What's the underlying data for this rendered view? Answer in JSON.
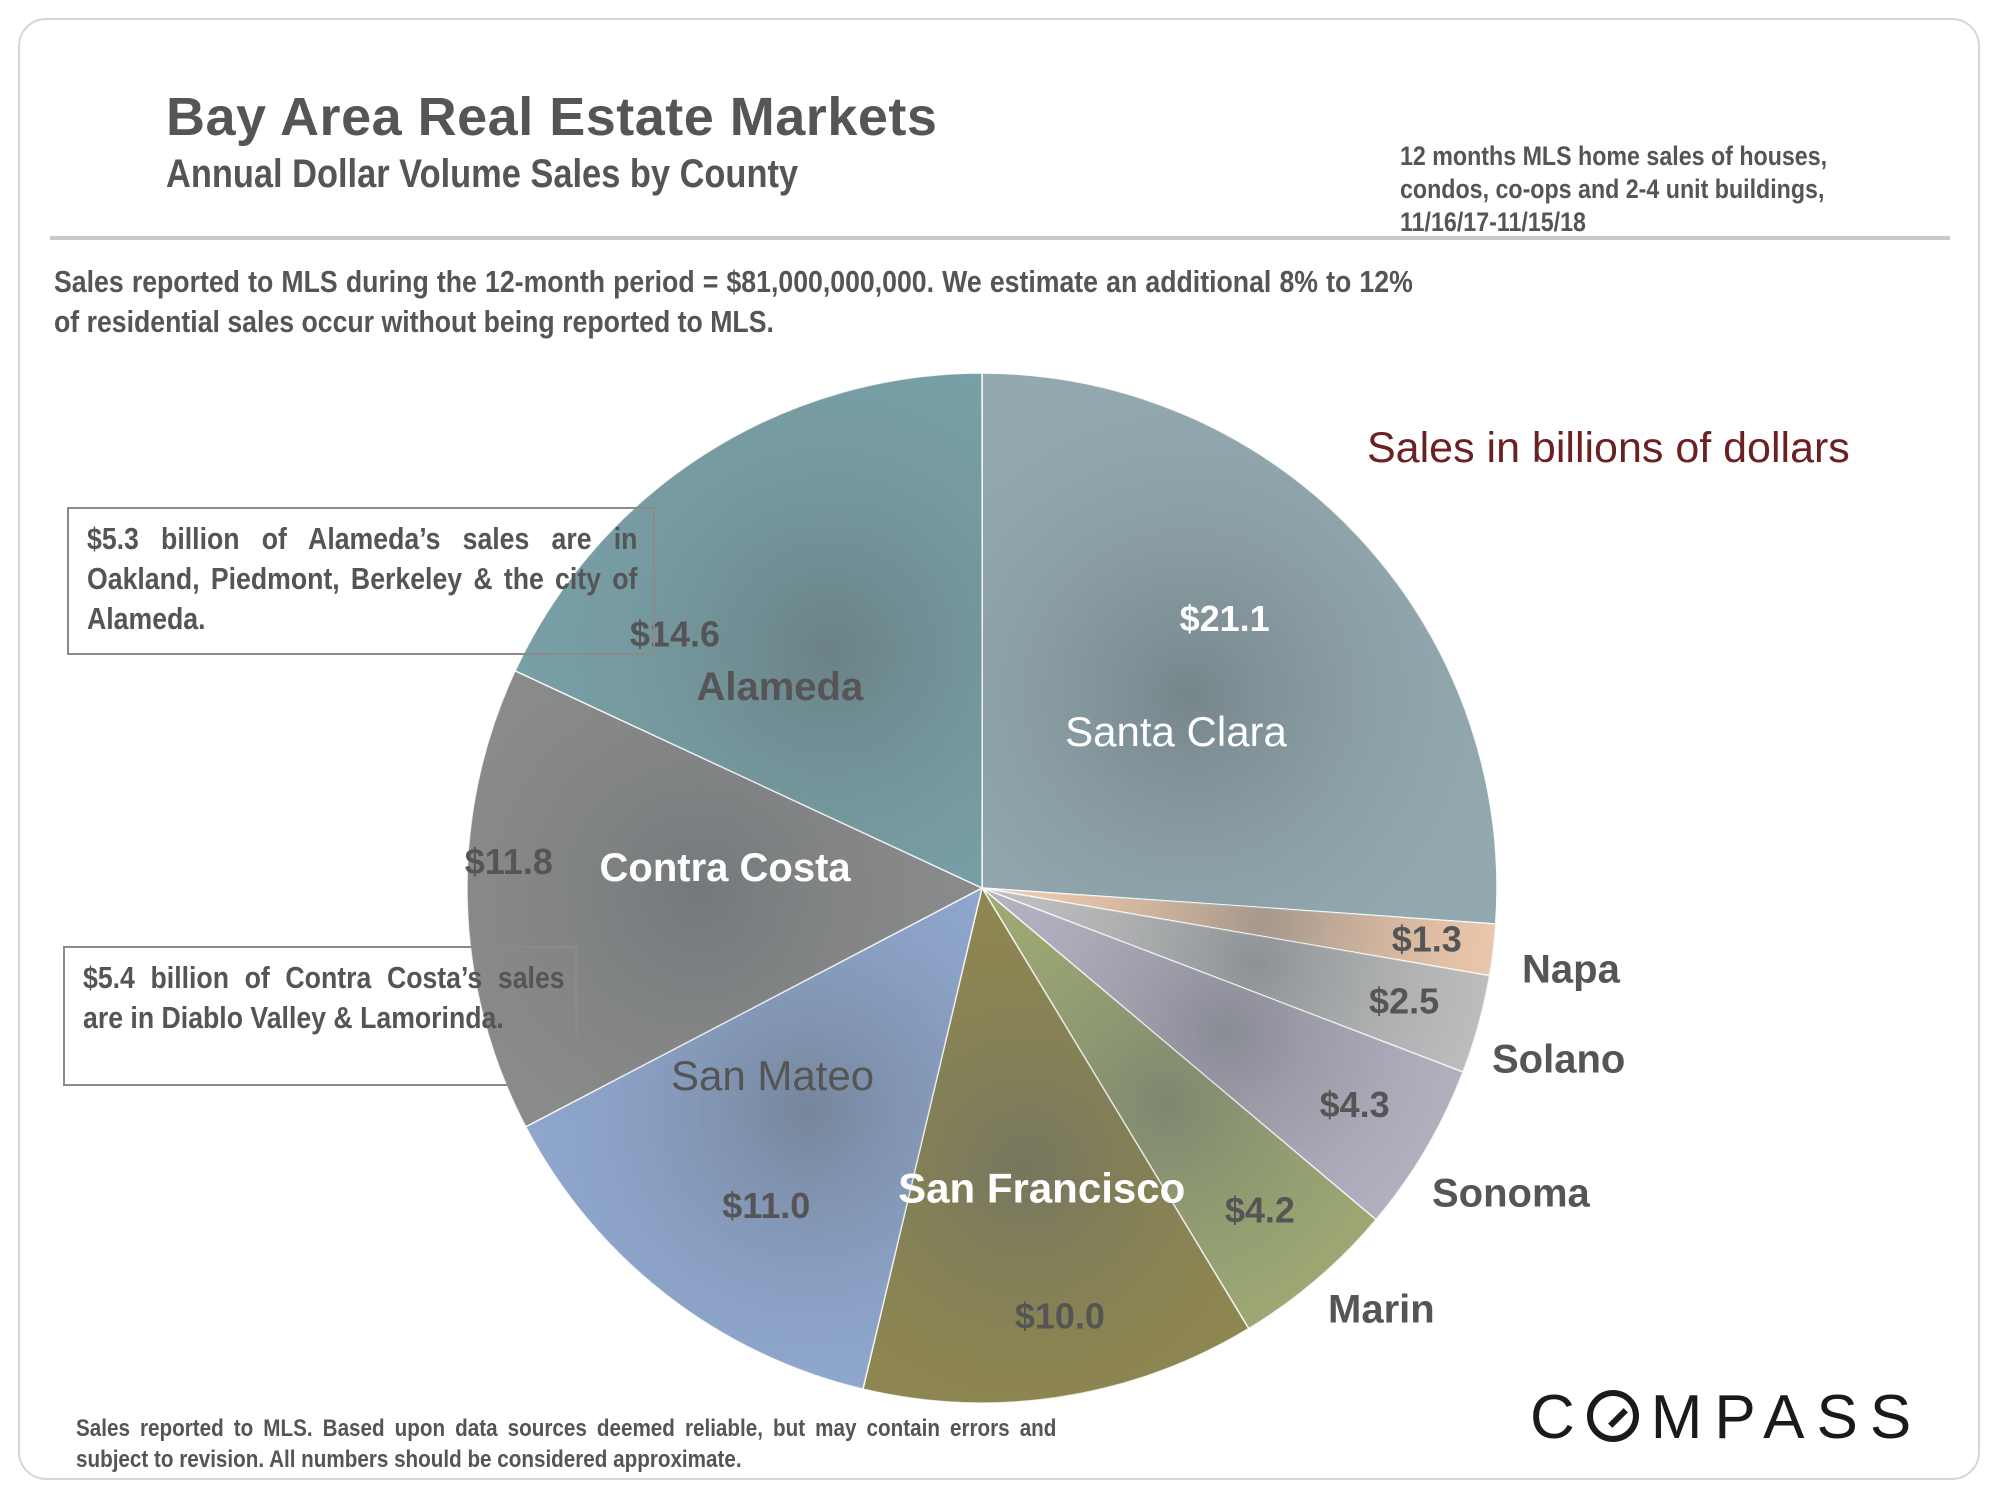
{
  "header": {
    "title": "Bay Area Real Estate Markets",
    "subtitle": "Annual Dollar Volume Sales by County",
    "period_lines": [
      "12 months MLS home sales of houses,",
      "condos, co-ops and 2-4 unit buildings,",
      "11/16/17-11/15/18"
    ]
  },
  "intro": "Sales reported to MLS during the 12-month period = $81,000,000,000. We estimate an additional 8% to 12% of residential sales occur without being reported to MLS.",
  "notes": {
    "alameda": "$5.3 billion of Alameda’s sales are in Oakland, Piedmont, Berkeley & the city of Alameda.",
    "contra_costa": "$5.4 billion of Contra Costa’s sales are in Diablo Valley & Lamorinda."
  },
  "footer": "Sales reported to MLS. Based upon data sources deemed reliable, but may contain errors and subject to revision. All numbers should be considered approximate.",
  "logo": {
    "before": "C",
    "after": "MPASS"
  },
  "chart_data": {
    "type": "pie",
    "title": "Bay Area Real Estate Markets",
    "subtitle": "Sales in billions of dollars",
    "unit": "billions of dollars",
    "start": "12 o'clock, clockwise",
    "slices": [
      {
        "name": "Santa Clara",
        "value": 21.1,
        "value_label": "$21.1",
        "color": "#93a9b0"
      },
      {
        "name": "Napa",
        "value": 1.3,
        "value_label": "$1.3",
        "color": "#f8cfb0"
      },
      {
        "name": "Solano",
        "value": 2.5,
        "value_label": "$2.5",
        "color": "#c4c4c4"
      },
      {
        "name": "Sonoma",
        "value": 4.3,
        "value_label": "$4.3",
        "color": "#bbb5c6"
      },
      {
        "name": "Marin",
        "value": 4.2,
        "value_label": "$4.2",
        "color": "#a2ad74"
      },
      {
        "name": "San Francisco",
        "value": 10.0,
        "value_label": "$10.0",
        "color": "#91884f"
      },
      {
        "name": "San Mateo",
        "value": 11.0,
        "value_label": "$11.0",
        "color": "#91a9d2"
      },
      {
        "name": "Contra Costa",
        "value": 11.8,
        "value_label": "$11.8",
        "color": "#8c8c8c"
      },
      {
        "name": "Alameda",
        "value": 14.6,
        "value_label": "$14.6",
        "color": "#78a1a7"
      }
    ]
  }
}
